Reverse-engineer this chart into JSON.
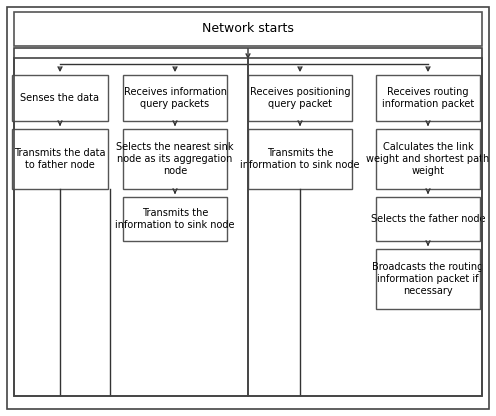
{
  "bg_color": "#ffffff",
  "outer_border_color": "#444444",
  "box_facecolor": "#ffffff",
  "box_edgecolor": "#555555",
  "text_color": "#000000",
  "title": "Network starts",
  "col1_box1": "Senses the data",
  "col1_box2": "Transmits the data\nto father node",
  "col2_box1": "Receives information\nquery packets",
  "col2_box2": "Selects the nearest sink\nnode as its aggregation\nnode",
  "col2_box3": "Transmits the\ninformation to sink node",
  "col3_box1": "Receives positioning\nquery packet",
  "col3_box2": "Transmits the\ninformation to sink node",
  "col4_box1": "Receives routing\ninformation packet",
  "col4_box2": "Calculates the link\nweight and shortest path\nweight",
  "col4_box3": "Selects the father node",
  "col4_box4": "Broadcasts the routing\ninformation packet if\nnecessary",
  "font_size": 7.0,
  "title_font_size": 9.0,
  "arrow_color": "#333333",
  "line_color": "#333333"
}
